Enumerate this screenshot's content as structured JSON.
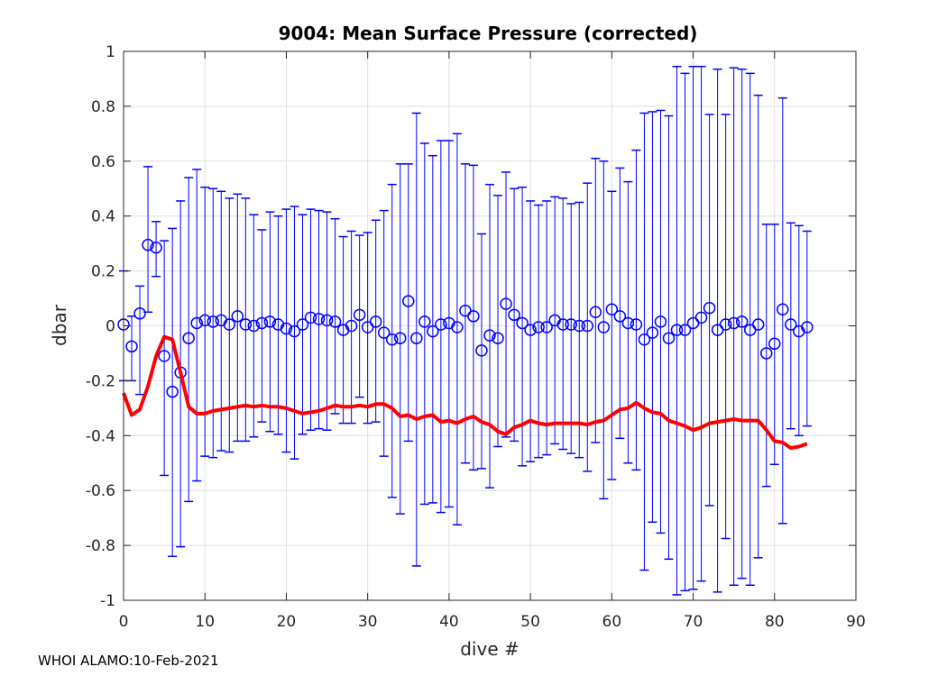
{
  "chart_data": {
    "type": "scatter",
    "title": "9004: Mean Surface Pressure (corrected)",
    "xlabel": "dive #",
    "ylabel": "dbar",
    "xlim": [
      0,
      90
    ],
    "ylim": [
      -1,
      1
    ],
    "xticks": [
      0,
      10,
      20,
      30,
      40,
      50,
      60,
      70,
      80,
      90
    ],
    "yticks": [
      -1,
      -0.8,
      -0.6,
      -0.4,
      -0.2,
      0,
      0.2,
      0.4,
      0.6,
      0.8,
      1
    ],
    "xtick_labels": [
      "0",
      "10",
      "20",
      "30",
      "40",
      "50",
      "60",
      "70",
      "80",
      "90"
    ],
    "ytick_labels": [
      "-1",
      "-0.8",
      "-0.6",
      "-0.4",
      "-0.2",
      "0",
      "0.2",
      "0.4",
      "0.6",
      "0.8",
      "1"
    ],
    "grid": true,
    "series": [
      {
        "name": "mean surface pressure",
        "style": "circles-with-errorbars",
        "color": "#0000ff",
        "x": [
          0,
          1,
          2,
          3,
          4,
          5,
          6,
          7,
          8,
          9,
          10,
          11,
          12,
          13,
          14,
          15,
          16,
          17,
          18,
          19,
          20,
          21,
          22,
          23,
          24,
          25,
          26,
          27,
          28,
          29,
          30,
          31,
          32,
          33,
          34,
          35,
          36,
          37,
          38,
          39,
          40,
          41,
          42,
          43,
          44,
          45,
          46,
          47,
          48,
          49,
          50,
          51,
          52,
          53,
          54,
          55,
          56,
          57,
          58,
          59,
          60,
          61,
          62,
          63,
          64,
          65,
          66,
          67,
          68,
          69,
          70,
          71,
          72,
          73,
          74,
          75,
          76,
          77,
          78,
          79,
          80,
          81,
          82,
          83,
          84
        ],
        "y": [
          0.005,
          -0.075,
          0.045,
          0.295,
          0.285,
          -0.11,
          -0.24,
          -0.17,
          -0.045,
          0.01,
          0.02,
          0.015,
          0.02,
          0.005,
          0.035,
          0.005,
          0.0,
          0.01,
          0.015,
          0.005,
          -0.01,
          -0.02,
          0.005,
          0.03,
          0.025,
          0.02,
          0.015,
          -0.015,
          0.0,
          0.04,
          -0.005,
          0.015,
          -0.025,
          -0.05,
          -0.045,
          0.09,
          -0.045,
          0.015,
          -0.02,
          0.005,
          0.01,
          -0.005,
          0.055,
          0.035,
          -0.09,
          -0.035,
          -0.045,
          0.08,
          0.04,
          0.01,
          -0.015,
          -0.005,
          -0.005,
          0.02,
          0.005,
          0.005,
          0.0,
          0.0,
          0.05,
          -0.005,
          0.06,
          0.035,
          0.01,
          0.005,
          -0.05,
          -0.025,
          0.015,
          -0.045,
          -0.015,
          -0.015,
          0.01,
          0.03,
          0.065,
          -0.015,
          0.005,
          0.01,
          0.015,
          -0.015,
          0.005,
          -0.1,
          -0.065,
          0.06,
          0.005,
          -0.02,
          -0.005
        ],
        "upper": [
          0.2,
          0.035,
          0.145,
          0.58,
          0.38,
          0.31,
          0.355,
          0.455,
          0.54,
          0.57,
          0.505,
          0.5,
          0.49,
          0.465,
          0.48,
          0.465,
          0.405,
          0.35,
          0.415,
          0.4,
          0.425,
          0.435,
          0.405,
          0.425,
          0.42,
          0.415,
          0.39,
          0.325,
          0.345,
          0.33,
          0.34,
          0.385,
          0.42,
          0.515,
          0.59,
          0.59,
          0.775,
          0.665,
          0.62,
          0.675,
          0.675,
          0.7,
          0.59,
          0.585,
          0.335,
          0.515,
          0.475,
          0.56,
          0.5,
          0.505,
          0.455,
          0.44,
          0.455,
          0.47,
          0.465,
          0.445,
          0.45,
          0.52,
          0.61,
          0.6,
          0.49,
          0.575,
          0.525,
          0.64,
          0.775,
          0.78,
          0.785,
          0.765,
          0.945,
          0.92,
          0.945,
          0.945,
          0.77,
          0.935,
          0.77,
          0.94,
          0.935,
          0.92,
          0.84,
          0.37,
          0.37,
          0.83,
          0.375,
          0.365,
          0.345
        ],
        "lower": [
          -0.2,
          -0.2,
          -0.25,
          0.05,
          0.18,
          -0.545,
          -0.84,
          -0.805,
          -0.64,
          -0.565,
          -0.475,
          -0.48,
          -0.455,
          -0.46,
          -0.42,
          -0.42,
          -0.405,
          -0.35,
          -0.385,
          -0.395,
          -0.46,
          -0.485,
          -0.395,
          -0.38,
          -0.375,
          -0.38,
          -0.32,
          -0.355,
          -0.355,
          -0.26,
          -0.355,
          -0.35,
          -0.475,
          -0.625,
          -0.685,
          -0.42,
          -0.875,
          -0.65,
          -0.645,
          -0.68,
          -0.66,
          -0.725,
          -0.5,
          -0.525,
          -0.52,
          -0.59,
          -0.44,
          -0.405,
          -0.42,
          -0.51,
          -0.495,
          -0.48,
          -0.47,
          -0.43,
          -0.45,
          -0.465,
          -0.48,
          -0.53,
          -0.425,
          -0.63,
          -0.56,
          -0.41,
          -0.5,
          -0.525,
          -0.89,
          -0.715,
          -0.755,
          -0.85,
          -0.98,
          -0.965,
          -0.96,
          -0.93,
          -0.655,
          -0.97,
          -0.775,
          -0.945,
          -0.92,
          -0.945,
          -0.845,
          -0.585,
          -0.505,
          -0.72,
          -0.375,
          -0.4,
          -0.365
        ]
      },
      {
        "name": "corrected running mean",
        "style": "line",
        "color": "#ff0000",
        "x": [
          0,
          1,
          2,
          3,
          4,
          5,
          6,
          7,
          8,
          9,
          10,
          11,
          12,
          13,
          14,
          15,
          16,
          17,
          18,
          19,
          20,
          21,
          22,
          23,
          24,
          25,
          26,
          27,
          28,
          29,
          30,
          31,
          32,
          33,
          34,
          35,
          36,
          37,
          38,
          39,
          40,
          41,
          42,
          43,
          44,
          45,
          46,
          47,
          48,
          49,
          50,
          51,
          52,
          53,
          54,
          55,
          56,
          57,
          58,
          59,
          60,
          61,
          62,
          63,
          64,
          65,
          66,
          67,
          68,
          69,
          70,
          71,
          72,
          73,
          74,
          75,
          76,
          77,
          78,
          79,
          80,
          81,
          82,
          83,
          84
        ],
        "y": [
          -0.245,
          -0.325,
          -0.305,
          -0.22,
          -0.11,
          -0.04,
          -0.05,
          -0.17,
          -0.295,
          -0.32,
          -0.32,
          -0.31,
          -0.305,
          -0.3,
          -0.295,
          -0.29,
          -0.295,
          -0.29,
          -0.295,
          -0.295,
          -0.3,
          -0.31,
          -0.32,
          -0.315,
          -0.31,
          -0.3,
          -0.29,
          -0.295,
          -0.295,
          -0.29,
          -0.295,
          -0.285,
          -0.285,
          -0.3,
          -0.33,
          -0.325,
          -0.34,
          -0.33,
          -0.325,
          -0.35,
          -0.345,
          -0.355,
          -0.34,
          -0.33,
          -0.35,
          -0.36,
          -0.385,
          -0.395,
          -0.37,
          -0.36,
          -0.345,
          -0.355,
          -0.36,
          -0.355,
          -0.355,
          -0.355,
          -0.355,
          -0.36,
          -0.35,
          -0.345,
          -0.325,
          -0.305,
          -0.3,
          -0.28,
          -0.3,
          -0.315,
          -0.32,
          -0.345,
          -0.355,
          -0.365,
          -0.38,
          -0.37,
          -0.355,
          -0.35,
          -0.345,
          -0.34,
          -0.345,
          -0.345,
          -0.345,
          -0.38,
          -0.42,
          -0.425,
          -0.445,
          -0.44,
          -0.43
        ]
      }
    ]
  },
  "footer": "WHOI ALAMO:10-Feb-2021"
}
